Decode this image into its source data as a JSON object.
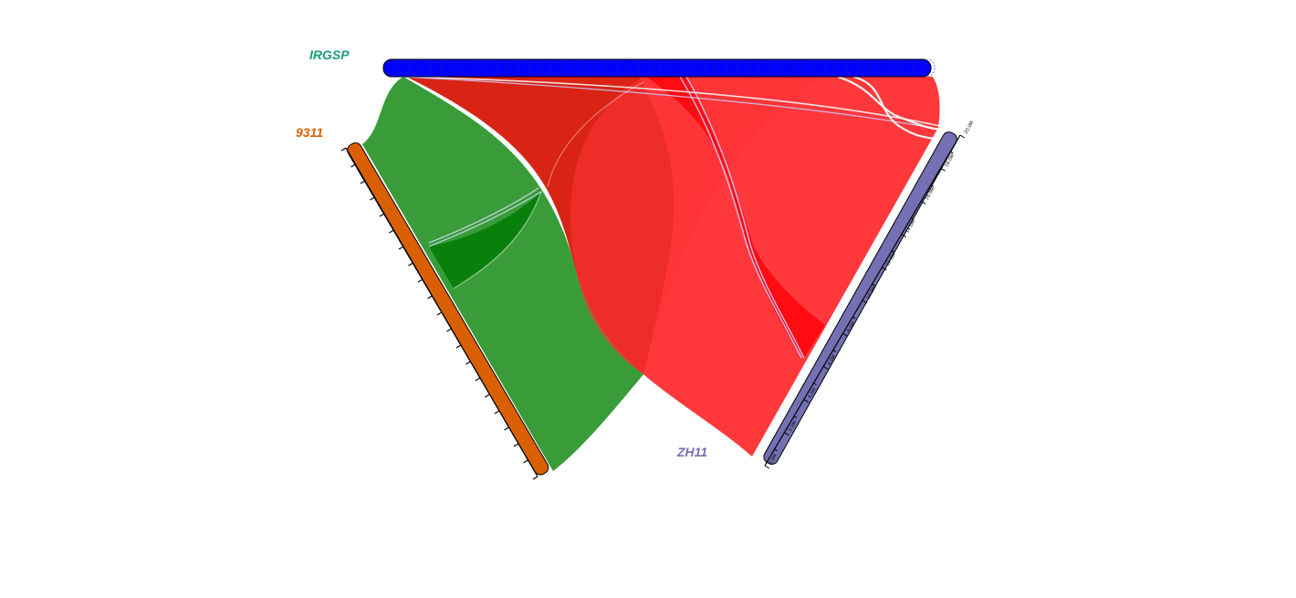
{
  "diagram": {
    "type": "synteny-triangle",
    "genomes": [
      {
        "id": "top",
        "name": "IRGSP",
        "label_color": "#1a9e77",
        "bar_color": "#0000ff"
      },
      {
        "id": "left",
        "name": "9311",
        "label_color": "#d95f02",
        "bar_color": "#d95f02"
      },
      {
        "id": "right",
        "name": "ZH11",
        "label_color": "#7570b3",
        "bar_color": "#7570b3"
      }
    ],
    "link_colors": {
      "green": "#359a35",
      "dark_green": "#087f0a",
      "dark_red": "#d81f10",
      "red": "#ff3438",
      "bright_red": "#ff0a10"
    },
    "right_ticks": [
      "0.0M",
      "2.0M",
      "4.0M",
      "6.0M",
      "8.0M",
      "10.0M",
      "12.0M",
      "14.0M",
      "16.0M",
      "18.0M",
      "20.0M"
    ]
  }
}
